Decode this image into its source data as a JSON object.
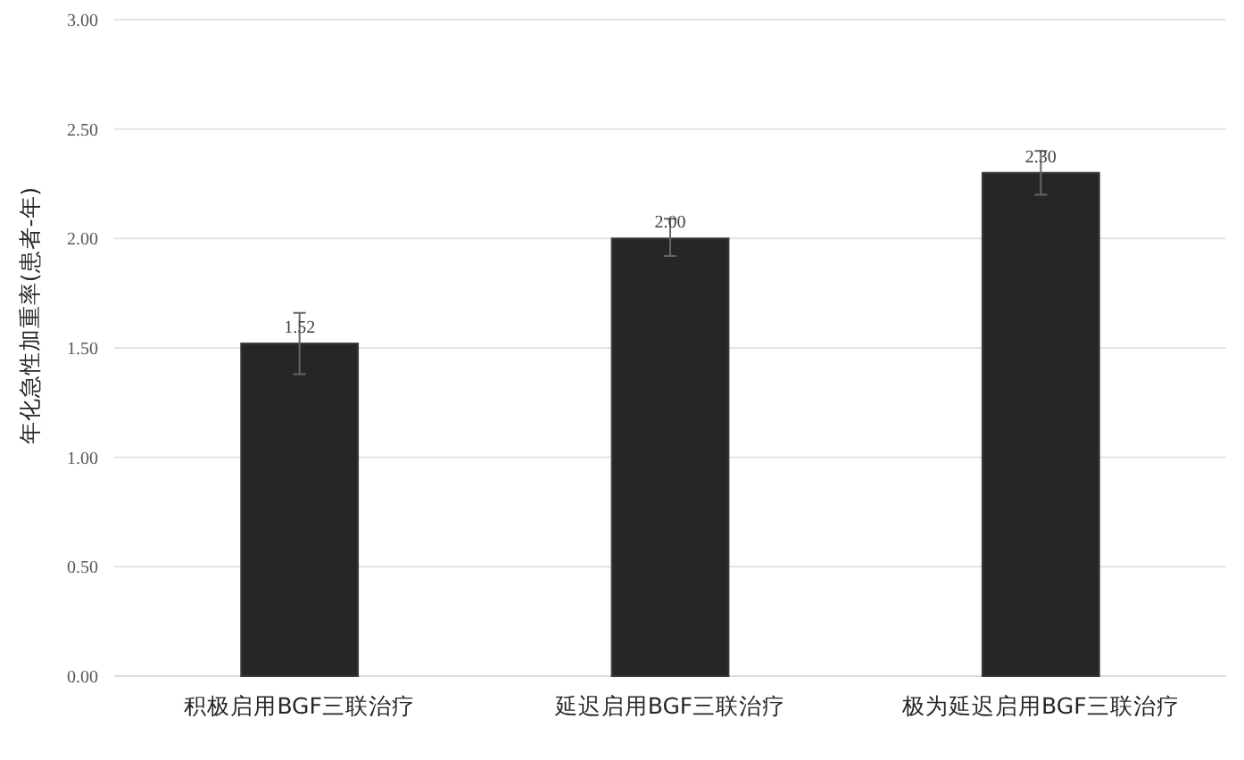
{
  "chart_data": {
    "type": "bar",
    "ylabel": "年化急性加重率(患者-年)",
    "categories": [
      "积极启用BGF三联治疗",
      "延迟启用BGF三联治疗",
      "极为延迟启用BGF三联治疗"
    ],
    "values": [
      1.52,
      2.0,
      2.3
    ],
    "color": "#262626",
    "errors": [
      [
        1.38,
        1.66
      ],
      [
        1.92,
        2.09
      ],
      [
        2.2,
        2.4
      ]
    ],
    "value_labels": [
      "1.52",
      "2.00",
      "2.30"
    ],
    "ylim": [
      0,
      3
    ],
    "yticks": [
      {
        "value": 0,
        "label": "0.00"
      },
      {
        "value": 0.5,
        "label": "0.50"
      },
      {
        "value": 1,
        "label": "1.00"
      },
      {
        "value": 1.5,
        "label": "1.50"
      },
      {
        "value": 2,
        "label": "2.00"
      },
      {
        "value": 2.5,
        "label": "2.50"
      },
      {
        "value": 3,
        "label": "3.00"
      }
    ],
    "grid": "y"
  }
}
